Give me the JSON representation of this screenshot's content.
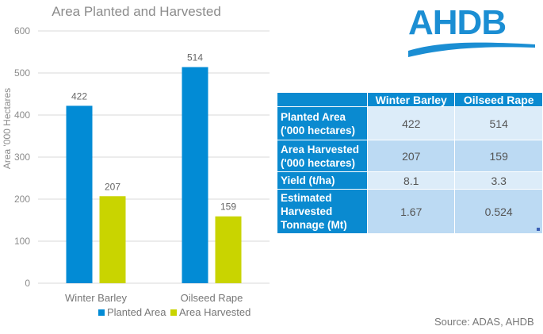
{
  "chart_data": {
    "type": "bar",
    "title": "Area Planted and Harvested",
    "xlabel": "",
    "ylabel": "Area '000 Hectares",
    "ylim": [
      0,
      600
    ],
    "yticks": [
      0,
      100,
      200,
      300,
      400,
      500,
      600
    ],
    "grid": true,
    "legend_position": "bottom",
    "categories": [
      "Winter Barley",
      "Oilseed Rape"
    ],
    "series": [
      {
        "name": "Planted Area",
        "color": "#028bd5",
        "values": [
          422,
          514
        ]
      },
      {
        "name": "Area Harvested",
        "color": "#c9d400",
        "values": [
          207,
          159
        ]
      }
    ]
  },
  "logo": {
    "text": "AHDB",
    "color": "#1b8ed3"
  },
  "table": {
    "headers": [
      "",
      "Winter Barley",
      "Oilseed Rape"
    ],
    "rows": [
      {
        "label": "Planted Area ('000 hectares)",
        "values": [
          "422",
          "514"
        ]
      },
      {
        "label": "Area Harvested ('000 hectares)",
        "values": [
          "207",
          "159"
        ]
      },
      {
        "label": "Yield (t/ha)",
        "values": [
          "8.1",
          "3.3"
        ]
      },
      {
        "label": "Estimated Harvested Tonnage (Mt)",
        "values": [
          "1.67",
          "0.524"
        ]
      }
    ]
  },
  "source": "Source: ADAS, AHDB"
}
